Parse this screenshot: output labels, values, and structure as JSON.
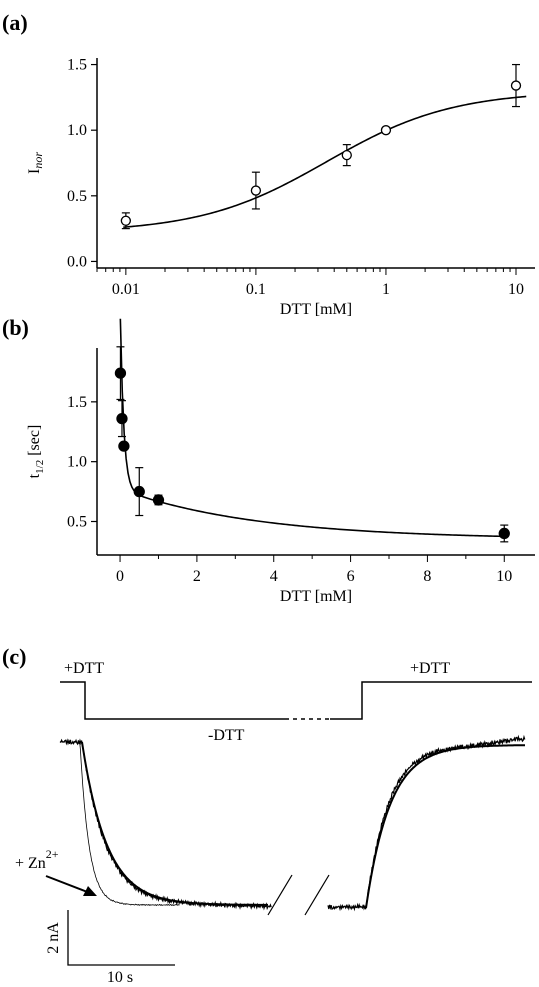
{
  "chart_data": [
    {
      "panel": "(a)",
      "type": "scatter",
      "xlabel": "DTT [mM]",
      "ylabel": {
        "main": "I",
        "sub": "nor"
      },
      "xscale": "log",
      "xlim": [
        0.006,
        14
      ],
      "ylim": [
        -0.05,
        1.55
      ],
      "xticks": [
        0.01,
        0.1,
        1,
        10
      ],
      "xtick_labels": [
        "0.01",
        "0.1",
        "1",
        "10"
      ],
      "yticks": [
        0,
        0.5,
        1,
        1.5
      ],
      "ytick_labels": [
        "0.0",
        "0.5",
        "1.0",
        "1.5"
      ],
      "marker": "open-circle",
      "points": [
        {
          "x": 0.01,
          "y": 0.31,
          "err": 0.06
        },
        {
          "x": 0.1,
          "y": 0.54,
          "err": 0.14
        },
        {
          "x": 0.5,
          "y": 0.81,
          "err": 0.08
        },
        {
          "x": 1,
          "y": 1.0,
          "err": 0
        },
        {
          "x": 10,
          "y": 1.34,
          "err": 0.16
        }
      ],
      "fit": {
        "bottom": 0.22,
        "top": 1.3,
        "ec50": 0.35,
        "hill": 0.9
      }
    },
    {
      "panel": "(b)",
      "type": "scatter",
      "xlabel": "DTT [mM]",
      "ylabel": {
        "main": "t",
        "sub": "1/2",
        "unit": " [sec]"
      },
      "xscale": "linear",
      "xlim": [
        -0.6,
        10.8
      ],
      "ylim": [
        0.22,
        1.95
      ],
      "xticks": [
        0,
        2,
        4,
        6,
        8,
        10
      ],
      "xtick_labels": [
        "0",
        "2",
        "4",
        "6",
        "8",
        "10"
      ],
      "yticks": [
        0.5,
        1,
        1.5
      ],
      "ytick_labels": [
        "0.5",
        "1.0",
        "1.5"
      ],
      "marker": "filled-circle",
      "points": [
        {
          "x": 0.01,
          "y": 1.74,
          "err": 0.22
        },
        {
          "x": 0.05,
          "y": 1.36,
          "err": 0.15
        },
        {
          "x": 0.1,
          "y": 1.13,
          "err": 0
        },
        {
          "x": 0.5,
          "y": 0.75,
          "err": 0.2
        },
        {
          "x": 1,
          "y": 0.68,
          "err": 0.04
        },
        {
          "x": 10,
          "y": 0.4,
          "err": 0.07
        }
      ],
      "fit": {
        "y0": 0.35,
        "a1": 1.55,
        "k1": 11,
        "a2": 0.42,
        "k2": 0.28
      }
    },
    {
      "panel": "(c)",
      "type": "line",
      "annotations": {
        "dtt_on_left": "+DTT",
        "dtt_off": "-DTT",
        "dtt_on_right": "+DTT",
        "zinc_base": "+ Zn",
        "zinc_sup": "2+"
      },
      "scale_bar": {
        "vertical": "2 nA",
        "horizontal": "10 s"
      }
    }
  ]
}
